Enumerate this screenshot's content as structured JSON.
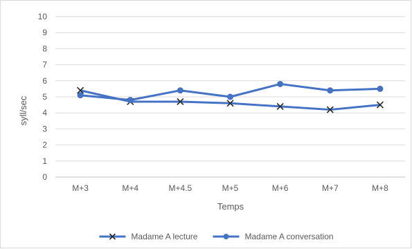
{
  "chart_data": {
    "type": "line",
    "title": "",
    "xlabel": "Temps",
    "ylabel": "syll/sec",
    "categories": [
      "M+3",
      "M+4",
      "M+4.5",
      "M+5",
      "M+6",
      "M+7",
      "M+8"
    ],
    "ylim": [
      0,
      10
    ],
    "yticks": [
      "0",
      "1",
      "2",
      "3",
      "4",
      "5",
      "6",
      "7",
      "8",
      "9",
      "10"
    ],
    "grid": true,
    "legend_position": "bottom",
    "series": [
      {
        "name": "Madame A lecture",
        "values": [
          5.4,
          4.7,
          4.7,
          4.6,
          4.4,
          4.2,
          4.5
        ],
        "color": "#4472C4",
        "marker": "x",
        "marker_color": "#262626"
      },
      {
        "name": "Madame A conversation",
        "values": [
          5.1,
          4.8,
          5.4,
          5.0,
          5.8,
          5.4,
          5.5
        ],
        "color": "#4472C4",
        "marker": "circle",
        "marker_color": "#4472C4"
      }
    ]
  }
}
